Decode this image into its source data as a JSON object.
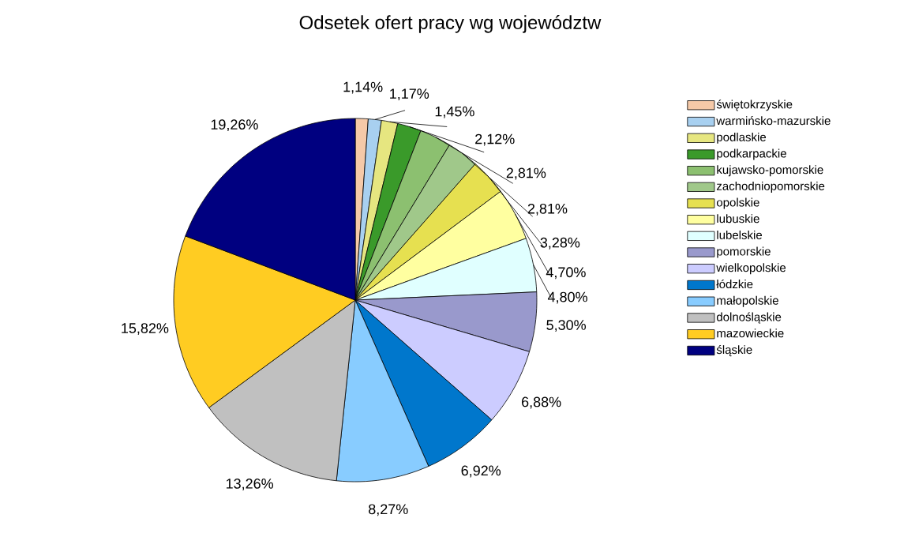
{
  "chart_data": {
    "type": "pie",
    "title": "Odsetek ofert pracy wg województw",
    "categories": [
      "świętokrzyskie",
      "warmińsko-mazurskie",
      "podlaskie",
      "podkarpackie",
      "kujawsko-pomorskie",
      "zachodniopomorskie",
      "opolskie",
      "lubuskie",
      "lubelskie",
      "pomorskie",
      "wielkopolskie",
      "łódzkie",
      "małopolskie",
      "dolnośląskie",
      "mazowieckie",
      "śląskie"
    ],
    "values": [
      1.14,
      1.17,
      1.45,
      2.12,
      2.81,
      2.81,
      3.28,
      4.7,
      4.8,
      5.3,
      6.88,
      6.92,
      8.27,
      13.26,
      15.82,
      19.26
    ],
    "value_labels": [
      "1,14%",
      "1,17%",
      "1,45%",
      "2,12%",
      "2,81%",
      "2,81%",
      "3,28%",
      "4,70%",
      "4,80%",
      "5,30%",
      "6,88%",
      "6,92%",
      "8,27%",
      "13,26%",
      "15,82%",
      "19,26%"
    ],
    "colors": [
      "#f5c9a8",
      "#a8d0f0",
      "#e6e680",
      "#3a9a2a",
      "#8cc070",
      "#a0c88a",
      "#e6e050",
      "#ffffa0",
      "#e0ffff",
      "#9999cc",
      "#ccccff",
      "#0077cc",
      "#88ccff",
      "#c0c0c0",
      "#ffcc22",
      "#000080"
    ],
    "legend": "right"
  }
}
